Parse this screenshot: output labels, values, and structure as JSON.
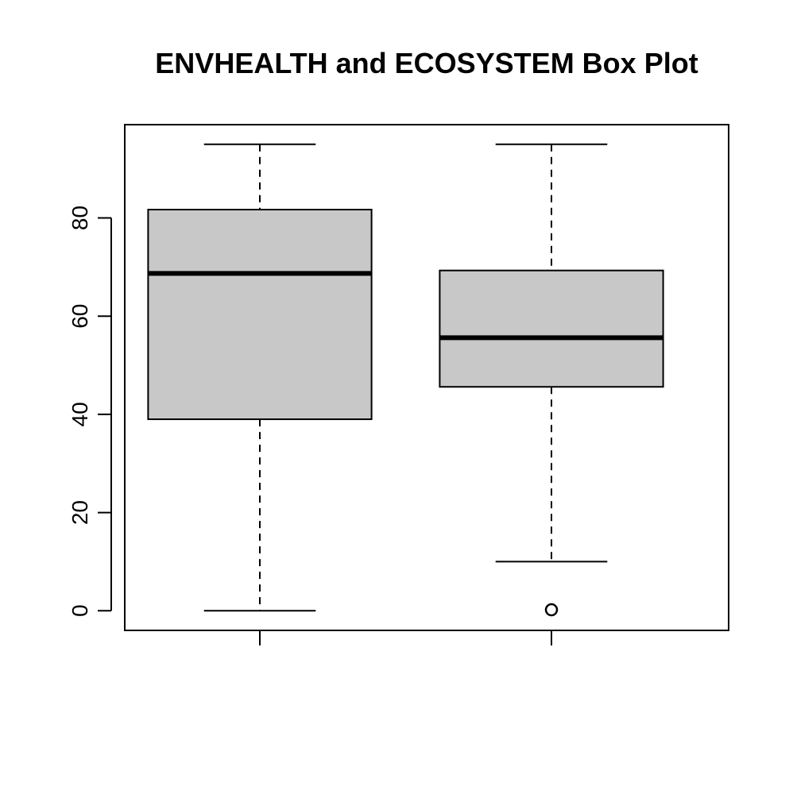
{
  "chart_data": {
    "type": "box",
    "title": "ENVHEALTH and ECOSYSTEM Box Plot",
    "xlabel": "",
    "ylabel": "",
    "ylim": [
      -4,
      99
    ],
    "yticks": [
      0,
      20,
      40,
      60,
      80
    ],
    "grid": false,
    "categories": [
      "",
      ""
    ],
    "boxes": [
      {
        "min": 0,
        "q1": 39,
        "median": 68.7,
        "q3": 81.7,
        "max": 95,
        "outliers": []
      },
      {
        "min": 10,
        "q1": 45.6,
        "median": 55.6,
        "q3": 69.3,
        "max": 95,
        "outliers": [
          0.2
        ]
      }
    ],
    "colors": {
      "box_fill": "#c8c8c8",
      "stroke": "#000000",
      "background": "#ffffff"
    }
  }
}
